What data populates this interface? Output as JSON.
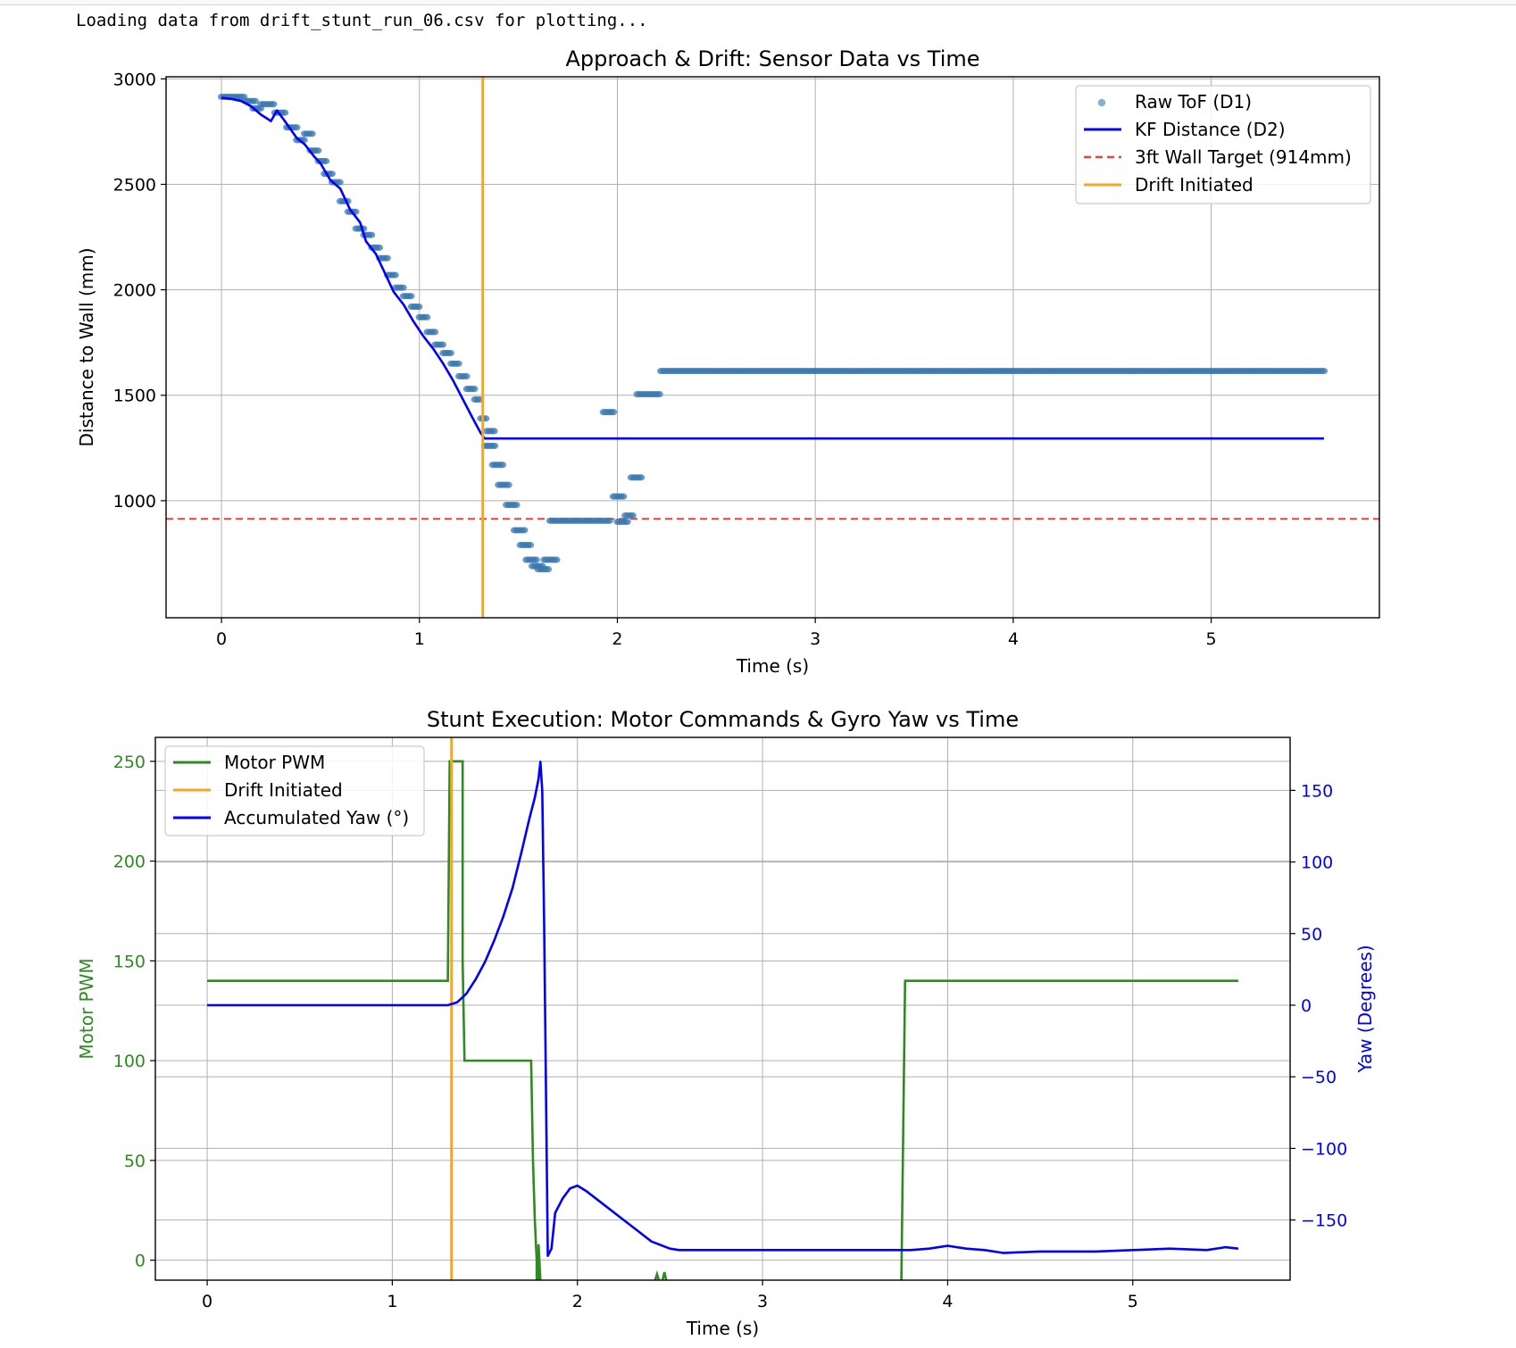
{
  "console_output": "Loading data from drift_stunt_run_06.csv for plotting...",
  "colors": {
    "raw_tof": "#3a78b0",
    "kf": "#0000ff",
    "target": "#e8413e",
    "drift": "#f5a623",
    "motor": "#2e8b1f",
    "yaw": "#0000ff",
    "grid": "#b0b0b0"
  },
  "chart_data": [
    {
      "type": "scatter+line",
      "title": "Approach & Drift: Sensor Data vs Time",
      "xlabel": "Time (s)",
      "ylabel": "Distance to Wall (mm)",
      "xlim": [
        -0.28,
        5.85
      ],
      "ylim": [
        445,
        3010
      ],
      "xticks": [
        0,
        1,
        2,
        3,
        4,
        5
      ],
      "yticks": [
        1000,
        1500,
        2000,
        2500,
        3000
      ],
      "grid": true,
      "legend_position": "top-right",
      "legend": [
        "Raw ToF (D1)",
        "KF Distance (D2)",
        "3ft Wall Target (914mm)",
        "Drift Initiated"
      ],
      "series": [
        {
          "name": "Raw ToF (D1)",
          "style": "scatter",
          "segments": [
            {
              "x_start": 0.0,
              "x_end": 0.12,
              "y": 2915
            },
            {
              "x_start": 0.12,
              "x_end": 0.18,
              "y": 2895
            },
            {
              "x_start": 0.16,
              "x_end": 0.2,
              "y": 2860
            },
            {
              "x_start": 0.2,
              "x_end": 0.27,
              "y": 2880
            },
            {
              "x_start": 0.27,
              "x_end": 0.33,
              "y": 2840
            },
            {
              "x_start": 0.33,
              "x_end": 0.38,
              "y": 2770
            },
            {
              "x_start": 0.38,
              "x_end": 0.42,
              "y": 2710
            },
            {
              "x_start": 0.42,
              "x_end": 0.46,
              "y": 2740
            },
            {
              "x_start": 0.45,
              "x_end": 0.49,
              "y": 2660
            },
            {
              "x_start": 0.49,
              "x_end": 0.53,
              "y": 2610
            },
            {
              "x_start": 0.52,
              "x_end": 0.56,
              "y": 2550
            },
            {
              "x_start": 0.56,
              "x_end": 0.6,
              "y": 2510
            },
            {
              "x_start": 0.6,
              "x_end": 0.64,
              "y": 2420
            },
            {
              "x_start": 0.64,
              "x_end": 0.68,
              "y": 2370
            },
            {
              "x_start": 0.68,
              "x_end": 0.72,
              "y": 2290
            },
            {
              "x_start": 0.72,
              "x_end": 0.76,
              "y": 2260
            },
            {
              "x_start": 0.76,
              "x_end": 0.8,
              "y": 2200
            },
            {
              "x_start": 0.8,
              "x_end": 0.84,
              "y": 2150
            },
            {
              "x_start": 0.84,
              "x_end": 0.88,
              "y": 2070
            },
            {
              "x_start": 0.88,
              "x_end": 0.92,
              "y": 2010
            },
            {
              "x_start": 0.92,
              "x_end": 0.96,
              "y": 1970
            },
            {
              "x_start": 0.96,
              "x_end": 1.0,
              "y": 1920
            },
            {
              "x_start": 1.0,
              "x_end": 1.04,
              "y": 1870
            },
            {
              "x_start": 1.04,
              "x_end": 1.08,
              "y": 1800
            },
            {
              "x_start": 1.08,
              "x_end": 1.12,
              "y": 1740
            },
            {
              "x_start": 1.12,
              "x_end": 1.16,
              "y": 1700
            },
            {
              "x_start": 1.16,
              "x_end": 1.2,
              "y": 1650
            },
            {
              "x_start": 1.2,
              "x_end": 1.24,
              "y": 1590
            },
            {
              "x_start": 1.24,
              "x_end": 1.28,
              "y": 1530
            },
            {
              "x_start": 1.28,
              "x_end": 1.31,
              "y": 1480
            },
            {
              "x_start": 1.31,
              "x_end": 1.34,
              "y": 1390
            },
            {
              "x_start": 1.34,
              "x_end": 1.38,
              "y": 1330
            },
            {
              "x_start": 1.33,
              "x_end": 1.38,
              "y": 1260
            },
            {
              "x_start": 1.37,
              "x_end": 1.42,
              "y": 1170
            },
            {
              "x_start": 1.4,
              "x_end": 1.46,
              "y": 1075
            },
            {
              "x_start": 1.44,
              "x_end": 1.5,
              "y": 980
            },
            {
              "x_start": 1.48,
              "x_end": 1.54,
              "y": 860
            },
            {
              "x_start": 1.51,
              "x_end": 1.57,
              "y": 790
            },
            {
              "x_start": 1.54,
              "x_end": 1.6,
              "y": 720
            },
            {
              "x_start": 1.57,
              "x_end": 1.63,
              "y": 690
            },
            {
              "x_start": 1.6,
              "x_end": 1.66,
              "y": 675
            },
            {
              "x_start": 1.63,
              "x_end": 1.7,
              "y": 720
            },
            {
              "x_start": 1.66,
              "x_end": 1.96,
              "y": 905
            },
            {
              "x_start": 1.93,
              "x_end": 1.98,
              "y": 1420
            },
            {
              "x_start": 1.98,
              "x_end": 2.03,
              "y": 1020
            },
            {
              "x_start": 2.0,
              "x_end": 2.05,
              "y": 900
            },
            {
              "x_start": 2.04,
              "x_end": 2.08,
              "y": 930
            },
            {
              "x_start": 2.07,
              "x_end": 2.12,
              "y": 1110
            },
            {
              "x_start": 2.1,
              "x_end": 2.22,
              "y": 1505
            },
            {
              "x_start": 2.22,
              "x_end": 5.57,
              "y": 1615
            }
          ]
        },
        {
          "name": "KF Distance (D2)",
          "style": "line",
          "x": [
            0.0,
            0.05,
            0.1,
            0.15,
            0.2,
            0.25,
            0.28,
            0.32,
            0.38,
            0.42,
            0.47,
            0.5,
            0.55,
            0.6,
            0.65,
            0.7,
            0.73,
            0.78,
            0.82,
            0.87,
            0.92,
            0.97,
            1.02,
            1.07,
            1.12,
            1.17,
            1.22,
            1.27,
            1.31,
            1.33,
            1.38,
            2.0,
            3.0,
            4.0,
            5.0,
            5.57
          ],
          "y": [
            2910,
            2905,
            2895,
            2870,
            2830,
            2800,
            2850,
            2800,
            2720,
            2690,
            2630,
            2600,
            2520,
            2480,
            2380,
            2320,
            2230,
            2170,
            2090,
            1990,
            1930,
            1850,
            1780,
            1720,
            1650,
            1570,
            1480,
            1390,
            1320,
            1295,
            1295,
            1295,
            1295,
            1295,
            1295,
            1295
          ]
        },
        {
          "name": "3ft Wall Target (914mm)",
          "style": "hline-dashed",
          "y": 914
        },
        {
          "name": "Drift Initiated",
          "style": "vline",
          "x": 1.32
        }
      ]
    },
    {
      "type": "line",
      "title": "Stunt Execution: Motor Commands & Gyro Yaw vs Time",
      "xlabel": "Time (s)",
      "ylabel": "Motor PWM",
      "ylabel_right": "Yaw (Degrees)",
      "xlim": [
        -0.28,
        5.85
      ],
      "ylim": [
        -10,
        262
      ],
      "ylim_right": [
        -192,
        187
      ],
      "xticks": [
        0,
        1,
        2,
        3,
        4,
        5
      ],
      "yticks": [
        0,
        50,
        100,
        150,
        200,
        250
      ],
      "yticks_right": [
        -150,
        -100,
        -50,
        0,
        50,
        100,
        150
      ],
      "tick_labels_right": [
        "−150",
        "−100",
        "−50",
        "0",
        "50",
        "100",
        "150"
      ],
      "grid": true,
      "legend_position": "top-left",
      "legend": [
        "Motor PWM",
        "Drift Initiated",
        "Accumulated Yaw (°)"
      ],
      "series": [
        {
          "name": "Motor PWM",
          "axis": "left",
          "x": [
            0.0,
            1.3,
            1.31,
            1.38,
            1.38,
            1.39,
            1.75,
            1.76,
            1.77,
            1.78,
            1.78,
            1.79,
            1.79,
            1.8
          ],
          "y": [
            140,
            140,
            250,
            250,
            150,
            100,
            100,
            50,
            20,
            0,
            -10,
            -10,
            8,
            -10
          ],
          "extra_segments": [
            {
              "x": [
                2.42,
                2.43,
                2.44
              ],
              "y": [
                -10,
                -7,
                -10
              ]
            },
            {
              "x": [
                2.46,
                2.47,
                2.48
              ],
              "y": [
                -10,
                -6,
                -10
              ]
            },
            {
              "x": [
                3.75,
                3.77,
                3.78,
                5.57
              ],
              "y": [
                -10,
                140,
                140,
                140
              ]
            }
          ]
        },
        {
          "name": "Drift Initiated",
          "axis": "left",
          "style": "vline",
          "x": 1.32
        },
        {
          "name": "Accumulated Yaw (°)",
          "axis": "right",
          "x": [
            0.0,
            0.5,
            1.0,
            1.3,
            1.35,
            1.4,
            1.45,
            1.5,
            1.55,
            1.6,
            1.65,
            1.7,
            1.74,
            1.77,
            1.79,
            1.8,
            1.81,
            1.82,
            1.84,
            1.86,
            1.88,
            1.92,
            1.96,
            2.0,
            2.05,
            2.1,
            2.2,
            2.3,
            2.4,
            2.5,
            2.55,
            3.0,
            3.5,
            3.8,
            3.9,
            4.0,
            4.1,
            4.2,
            4.3,
            4.5,
            4.8,
            5.0,
            5.2,
            5.4,
            5.5,
            5.57
          ],
          "y": [
            0,
            0,
            0,
            0,
            2,
            8,
            18,
            30,
            45,
            62,
            82,
            108,
            130,
            145,
            158,
            170,
            150,
            60,
            -175,
            -170,
            -145,
            -135,
            -128,
            -126,
            -130,
            -135,
            -145,
            -155,
            -165,
            -170,
            -171,
            -171,
            -171,
            -171,
            -170,
            -168,
            -170,
            -171,
            -173,
            -172,
            -172,
            -171,
            -170,
            -171,
            -169,
            -170
          ]
        }
      ]
    }
  ]
}
